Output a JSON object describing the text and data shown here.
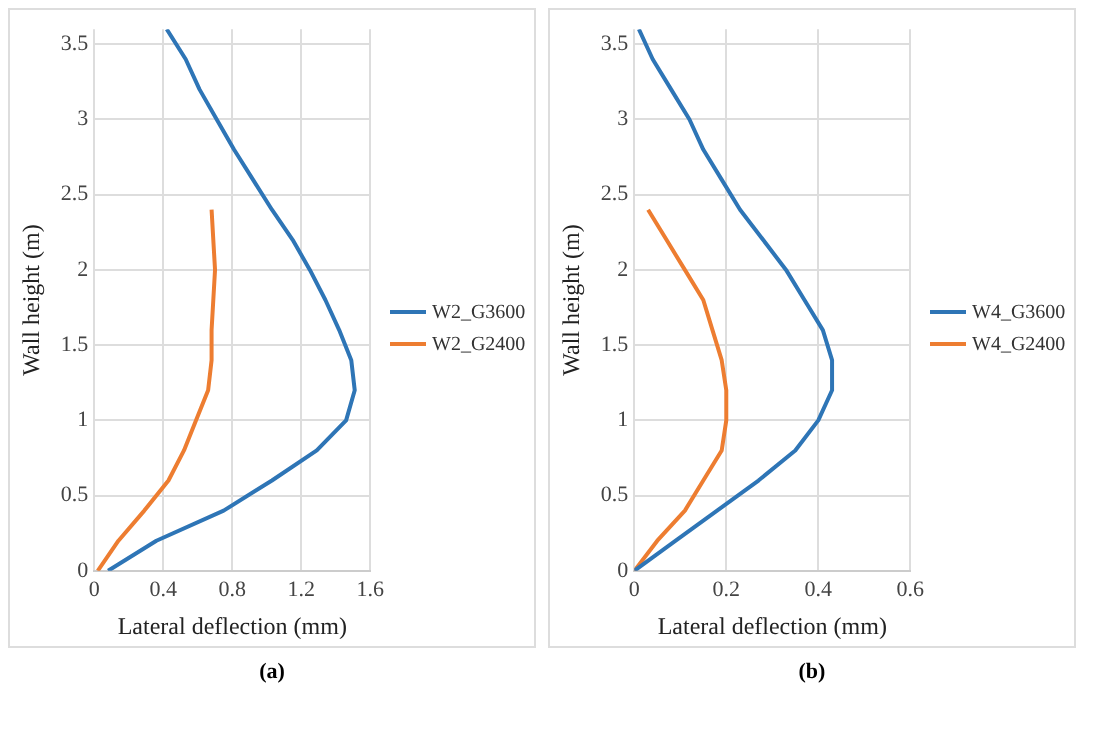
{
  "chart_data": [
    {
      "type": "line",
      "xlabel": "Lateral deflection (mm)",
      "ylabel": "Wall height (m)",
      "xlim": [
        0,
        1.6
      ],
      "xticks": [
        0,
        0.4,
        0.8,
        1.2,
        1.6
      ],
      "ylim": [
        0,
        3.6
      ],
      "yticks": [
        0,
        0.5,
        1,
        1.5,
        2,
        2.5,
        3,
        3.5
      ],
      "grid": true,
      "legend": "right",
      "marker": "none",
      "line_style": "solid",
      "annotations": [
        "(a)"
      ],
      "series": [
        {
          "name": "W2_G3600",
          "color": "#2e75b6",
          "x": [
            0.08,
            0.36,
            0.75,
            1.03,
            1.29,
            1.46,
            1.51,
            1.49,
            1.42,
            1.34,
            1.25,
            1.15,
            1.03,
            0.92,
            0.81,
            0.71,
            0.61,
            0.53,
            0.42
          ],
          "values": [
            0,
            0.2,
            0.4,
            0.6,
            0.8,
            1,
            1.2,
            1.4,
            1.6,
            1.8,
            2,
            2.2,
            2.4,
            2.6,
            2.8,
            3,
            3.2,
            3.4,
            3.6
          ]
        },
        {
          "name": "W2_G2400",
          "color": "#ed7d31",
          "x": [
            0.02,
            0.14,
            0.29,
            0.43,
            0.52,
            0.59,
            0.66,
            0.68,
            0.68,
            0.69,
            0.7,
            0.69,
            0.68
          ],
          "values": [
            0,
            0.2,
            0.4,
            0.6,
            0.8,
            1,
            1.2,
            1.4,
            1.6,
            1.8,
            2,
            2.2,
            2.4
          ]
        }
      ]
    },
    {
      "type": "line",
      "xlabel": "Lateral deflection (mm)",
      "ylabel": "Wall height (m)",
      "xlim": [
        0,
        0.6
      ],
      "xticks": [
        0,
        0.2,
        0.4,
        0.6
      ],
      "ylim": [
        0,
        3.6
      ],
      "yticks": [
        0,
        0.5,
        1,
        1.5,
        2,
        2.5,
        3,
        3.5
      ],
      "grid": true,
      "legend": "right",
      "marker": "none",
      "line_style": "solid",
      "annotations": [
        "(b)"
      ],
      "series": [
        {
          "name": "W4_G3600",
          "color": "#2e75b6",
          "x": [
            0,
            0.09,
            0.18,
            0.27,
            0.35,
            0.4,
            0.43,
            0.43,
            0.41,
            0.37,
            0.33,
            0.28,
            0.23,
            0.19,
            0.15,
            0.12,
            0.08,
            0.04,
            0.01
          ],
          "values": [
            0,
            0.2,
            0.4,
            0.6,
            0.8,
            1,
            1.2,
            1.4,
            1.6,
            1.8,
            2,
            2.2,
            2.4,
            2.6,
            2.8,
            3,
            3.2,
            3.4,
            3.6
          ]
        },
        {
          "name": "W4_G2400",
          "color": "#ed7d31",
          "x": [
            0,
            0.05,
            0.11,
            0.15,
            0.19,
            0.2,
            0.2,
            0.19,
            0.17,
            0.15,
            0.11,
            0.07,
            0.03
          ],
          "values": [
            0,
            0.2,
            0.4,
            0.6,
            0.8,
            1,
            1.2,
            1.4,
            1.6,
            1.8,
            2,
            2.2,
            2.4
          ]
        }
      ]
    }
  ]
}
